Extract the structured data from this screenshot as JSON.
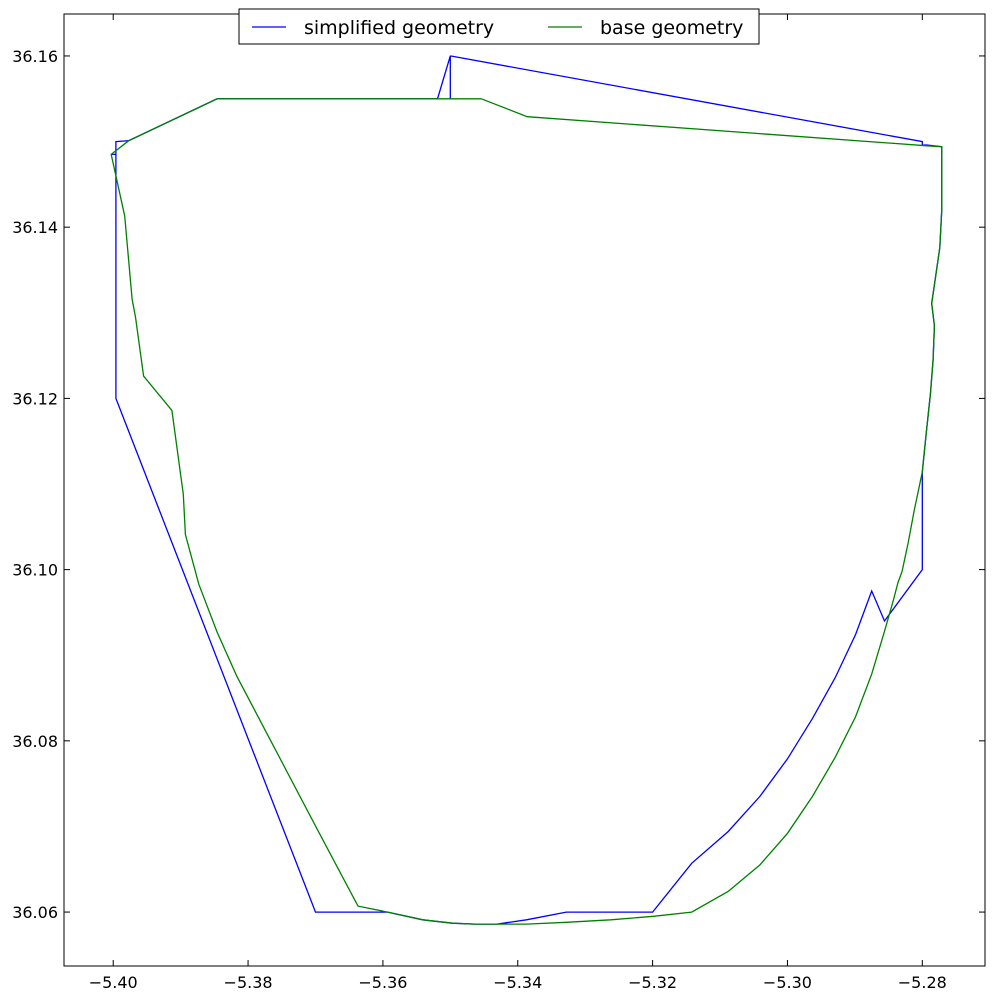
{
  "chart_data": {
    "type": "line",
    "title": "",
    "xlabel": "",
    "ylabel": "",
    "xlim": [
      -5.4073,
      -5.2707
    ],
    "ylim": [
      36.0537,
      36.1649
    ],
    "grid": false,
    "legend": {
      "placement": "upper-center",
      "columns": 2
    },
    "x_ticks": [
      -5.4,
      -5.38,
      -5.36,
      -5.34,
      -5.32,
      -5.3,
      -5.28
    ],
    "x_tick_labels": [
      "−5.40",
      "−5.38",
      "−5.36",
      "−5.34",
      "−5.32",
      "−5.30",
      "−5.28"
    ],
    "y_ticks": [
      36.06,
      36.08,
      36.1,
      36.12,
      36.14,
      36.16
    ],
    "y_tick_labels": [
      "36.06",
      "36.08",
      "36.10",
      "36.12",
      "36.14",
      "36.16"
    ],
    "series": [
      {
        "name": "simplified geometry",
        "color": "#0000ff",
        "x": [
          -5.35,
          -5.35,
          -5.3519,
          -5.3846,
          -5.3977,
          -5.3996,
          -5.3996,
          -5.4003,
          -5.3996,
          -5.3996,
          -5.37,
          -5.3593,
          -5.3541,
          -5.3497,
          -5.3464,
          -5.3431,
          -5.3387,
          -5.3328,
          -5.32,
          -5.3142,
          -5.3088,
          -5.3041,
          -5.3,
          -5.2963,
          -5.2929,
          -5.2899,
          -5.2875,
          -5.2856,
          -5.28,
          -5.28,
          -5.2794,
          -5.2788,
          -5.2784,
          -5.2782,
          -5.2786,
          -5.2774,
          -5.2771,
          -5.2771,
          -5.2793,
          -5.28,
          -5.28,
          -5.35
        ],
        "y": [
          36.155,
          36.16,
          36.155,
          36.155,
          36.1501,
          36.15,
          36.1485,
          36.1485,
          36.1485,
          36.12,
          36.06,
          36.06,
          36.0591,
          36.0587,
          36.0586,
          36.0586,
          36.0591,
          36.06,
          36.06,
          36.0657,
          36.0694,
          36.0735,
          36.0779,
          36.0826,
          36.0874,
          36.0924,
          36.0975,
          36.094,
          36.1,
          36.1114,
          36.116,
          36.1205,
          36.1245,
          36.1285,
          36.1311,
          36.1376,
          36.1421,
          36.1494,
          36.1496,
          36.1496,
          36.15,
          36.16
        ]
      },
      {
        "name": "base geometry",
        "color": "#008000",
        "x": [
          -5.3454,
          -5.3386,
          -5.2793,
          -5.2771,
          -5.2771,
          -5.2774,
          -5.2786,
          -5.2782,
          -5.2784,
          -5.2788,
          -5.2794,
          -5.28,
          -5.2812,
          -5.2821,
          -5.283,
          -5.2836,
          -5.2843,
          -5.2856,
          -5.2875,
          -5.2899,
          -5.2929,
          -5.2963,
          -5.3,
          -5.3041,
          -5.3088,
          -5.3142,
          -5.3199,
          -5.3262,
          -5.3328,
          -5.3387,
          -5.3431,
          -5.3464,
          -5.3497,
          -5.3541,
          -5.3593,
          -5.3637,
          -5.3699,
          -5.3817,
          -5.3846,
          -5.3873,
          -5.3893,
          -5.3896,
          -5.3913,
          -5.3955,
          -5.3967,
          -5.3972,
          -5.3983,
          -5.4003,
          -5.3977,
          -5.3846,
          -5.3519,
          -5.3454
        ],
        "y": [
          36.155,
          36.1529,
          36.1495,
          36.1494,
          36.1421,
          36.1376,
          36.1311,
          36.1285,
          36.1245,
          36.1205,
          36.116,
          36.1114,
          36.1069,
          36.1031,
          36.0998,
          36.0985,
          36.0964,
          36.0928,
          36.0878,
          36.0828,
          36.0781,
          36.0735,
          36.0692,
          36.0655,
          36.0624,
          36.06,
          36.0595,
          36.0591,
          36.0588,
          36.0586,
          36.0586,
          36.0586,
          36.0587,
          36.0591,
          36.06,
          36.0607,
          36.0699,
          36.0876,
          36.0927,
          36.0983,
          36.1041,
          36.1088,
          36.1186,
          36.1226,
          36.1295,
          36.1316,
          36.1413,
          36.1485,
          36.1501,
          36.155,
          36.155,
          36.155
        ]
      }
    ]
  }
}
